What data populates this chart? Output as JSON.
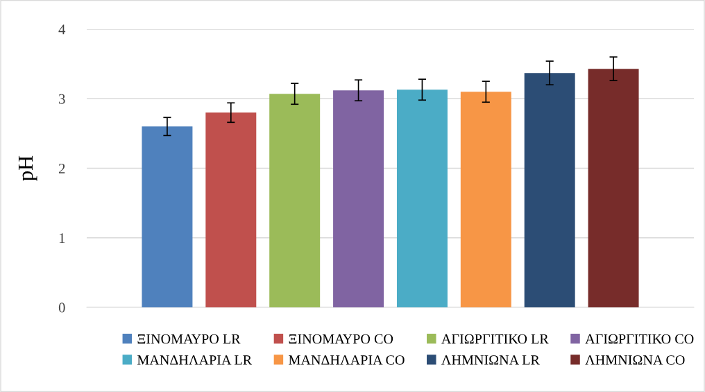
{
  "chart_data": {
    "type": "bar",
    "ylabel": "pH",
    "categories": [
      null
    ],
    "ylim": [
      0,
      4
    ],
    "yticks": [
      0,
      1,
      2,
      3,
      4
    ],
    "grid": "y",
    "legend": "bottom",
    "series": [
      {
        "name": "ΞΙΝΟΜΑΥΡΟ LR",
        "color": "#4f81bd",
        "values": [
          2.6
        ],
        "errors": [
          0.13
        ]
      },
      {
        "name": "ΞΙΝΟΜΑΥΡΟ CO",
        "color": "#c0504d",
        "values": [
          2.8
        ],
        "errors": [
          0.14
        ]
      },
      {
        "name": "ΑΓΙΩΡΓΙΤΙΚΟ LR",
        "color": "#9bbb59",
        "values": [
          3.07
        ],
        "errors": [
          0.15
        ]
      },
      {
        "name": "ΑΓΙΩΡΓΙΤΙΚΟ CO",
        "color": "#8064a2",
        "values": [
          3.12
        ],
        "errors": [
          0.15
        ]
      },
      {
        "name": "ΜΑΝΔΗΛΑΡΙΑ LR",
        "color": "#4bacc6",
        "values": [
          3.13
        ],
        "errors": [
          0.15
        ]
      },
      {
        "name": "ΜΑΝΔΗΛΑΡΙΑ CO",
        "color": "#f79646",
        "values": [
          3.1
        ],
        "errors": [
          0.15
        ]
      },
      {
        "name": "ΛΗΜΝΙΩΝΑ LR",
        "color": "#2c4d75",
        "values": [
          3.37
        ],
        "errors": [
          0.17
        ]
      },
      {
        "name": "ΛΗΜΝΙΩΝΑ CO",
        "color": "#772c2a",
        "values": [
          3.43
        ],
        "errors": [
          0.17
        ]
      }
    ]
  }
}
